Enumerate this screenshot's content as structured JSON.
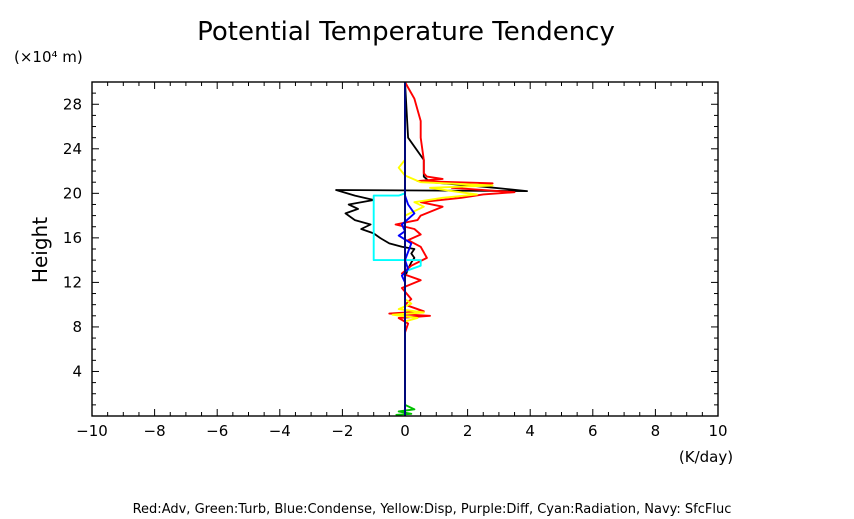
{
  "chart_data": {
    "type": "line",
    "title": "Potential Temperature Tendency",
    "ylabel": "Height",
    "y_unit": "(×10⁴ m)",
    "x_unit": "(K/day)",
    "xlim": [
      -10,
      10
    ],
    "ylim": [
      0,
      30
    ],
    "x_ticks": [
      -10,
      -8,
      -6,
      -4,
      -2,
      0,
      2,
      4,
      6,
      8,
      10
    ],
    "x_tick_labels": [
      "−10",
      "−8",
      "−6",
      "−4",
      "−2",
      "0",
      "2",
      "4",
      "6",
      "8",
      "10"
    ],
    "y_ticks": [
      4,
      8,
      12,
      16,
      20,
      24,
      28
    ],
    "y_tick_labels": [
      "4",
      "8",
      "12",
      "16",
      "20",
      "24",
      "28"
    ],
    "grid": false,
    "legend_text": "Red:Adv, Green:Turb, Blue:Condense, Yellow:Disp, Purple:Diff, Cyan:Radiation, Navy: SfcFluc",
    "series": [
      {
        "color": "#000000",
        "x": [
          0,
          0,
          0,
          0,
          0,
          0,
          0,
          0,
          0,
          0.1,
          0.2,
          0.3,
          0.2,
          0.3,
          -0.1,
          -0.5,
          -0.8,
          -1.0,
          -1.4,
          -1.1,
          -1.6,
          -1.9,
          -1.5,
          -1.8,
          -1.0,
          -1.6,
          -2.2,
          3.9,
          2.5,
          0.8,
          0.6,
          0.6,
          0.1,
          0
        ],
        "y": [
          0,
          5,
          8,
          8.8,
          9.2,
          9.6,
          10.5,
          12,
          12.5,
          13.2,
          13.8,
          14.2,
          14.6,
          15.0,
          15.2,
          15.5,
          16.0,
          16.4,
          16.8,
          17.2,
          17.6,
          18.2,
          18.6,
          19.0,
          19.4,
          19.8,
          20.3,
          20.2,
          20.6,
          21.0,
          21.5,
          23,
          25,
          30
        ]
      },
      {
        "color": "#ff0000",
        "x": [
          0,
          0,
          0.1,
          -0.2,
          0.8,
          -0.5,
          0.6,
          0,
          0.2,
          -0.1,
          0.5,
          -0.1,
          0.2,
          0.7,
          0.5,
          0.1,
          0.5,
          0.3,
          -0.3,
          0.4,
          0.5,
          1.2,
          0.5,
          1.8,
          2.5,
          3.5,
          1.5,
          2.8,
          0.4,
          1.2,
          0.7,
          0.6,
          0.6,
          0.5,
          0.5,
          0.4,
          0.3,
          0.1,
          0
        ],
        "y": [
          0,
          7.5,
          8.3,
          8.8,
          9.0,
          9.2,
          9.4,
          10.0,
          10.5,
          11.5,
          12.2,
          12.8,
          13.5,
          14.2,
          15.2,
          15.8,
          16.3,
          16.8,
          17.2,
          17.6,
          18.0,
          18.8,
          19.2,
          19.6,
          19.9,
          20.1,
          20.5,
          20.9,
          21.1,
          21.3,
          21.5,
          21.8,
          23.0,
          25.0,
          26.5,
          27.5,
          28.5,
          29.5,
          30
        ]
      },
      {
        "color": "#ffff00",
        "x": [
          0,
          0,
          0,
          0.4,
          -0.4,
          0.6,
          -0.2,
          0.2,
          0,
          0,
          0,
          0,
          0,
          0,
          0.6,
          0.3,
          1.2,
          2.3,
          1.5,
          0.8,
          2.8,
          0.5,
          0,
          -0.2,
          0,
          0
        ],
        "y": [
          0,
          7,
          8.5,
          8.8,
          9.1,
          9.3,
          9.6,
          10.1,
          10.5,
          12,
          14,
          16,
          17,
          18,
          18.8,
          19.2,
          19.6,
          19.9,
          20.2,
          20.5,
          20.7,
          21,
          21.6,
          22.3,
          23,
          30
        ]
      },
      {
        "color": "#00ffff",
        "x": [
          0,
          0,
          0.5,
          0.5,
          -1.0,
          -1.0,
          -0.2,
          0,
          0
        ],
        "y": [
          0,
          13,
          13.5,
          14.0,
          14.0,
          19.8,
          19.8,
          20.0,
          30
        ]
      },
      {
        "color": "#0000ff",
        "x": [
          0,
          0,
          -0.1,
          0.1,
          0,
          0.2,
          -0.2,
          0,
          -0.1,
          0.3,
          0.1,
          0,
          0,
          0
        ],
        "y": [
          0,
          12,
          12.6,
          13.2,
          14,
          15.5,
          16.2,
          16.6,
          17.2,
          18.2,
          19,
          19.8,
          21,
          30
        ]
      },
      {
        "color": "#00c000",
        "x": [
          -0.3,
          0.2,
          -0.2,
          0.3,
          0,
          0,
          0
        ],
        "y": [
          0.1,
          0.2,
          0.4,
          0.6,
          1.0,
          3,
          30
        ]
      },
      {
        "color": "#000080",
        "x": [
          0,
          0
        ],
        "y": [
          0,
          30
        ]
      }
    ]
  }
}
